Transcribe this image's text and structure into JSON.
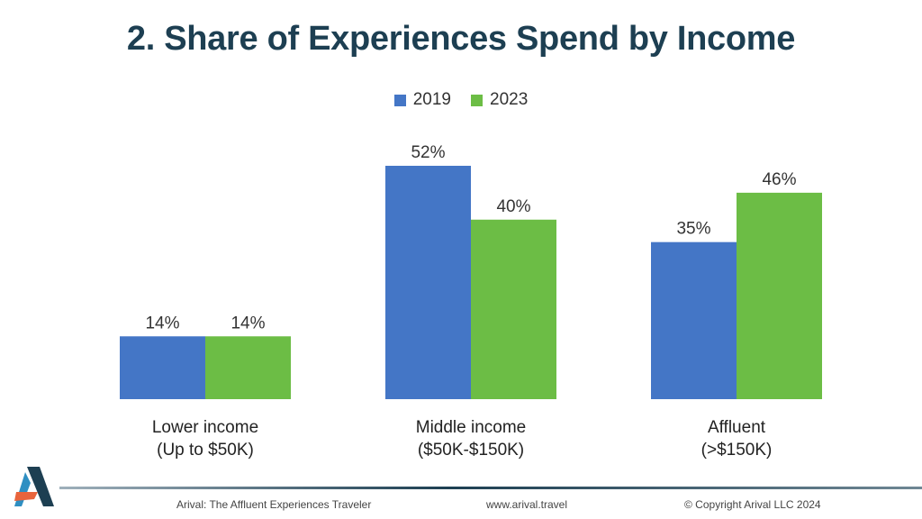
{
  "title": "2. Share of Experiences Spend by Income",
  "colors": {
    "series_2019": "#4476c6",
    "series_2023": "#6cbd45",
    "title": "#1d3f52"
  },
  "chart_data": {
    "type": "bar",
    "title": "2. Share of Experiences Spend by Income",
    "categories": [
      [
        "Lower income",
        "(Up to $50K)"
      ],
      [
        "Middle income",
        "($50K-$150K)"
      ],
      [
        "Affluent",
        "(>$150K)"
      ]
    ],
    "series": [
      {
        "name": "2019",
        "values": [
          14,
          52,
          35
        ],
        "labels": [
          "14%",
          "52%",
          "35%"
        ]
      },
      {
        "name": "2023",
        "values": [
          14,
          40,
          46
        ],
        "labels": [
          "14%",
          "40%",
          "46%"
        ]
      }
    ],
    "ylim": [
      0,
      52
    ],
    "legend": "top-center",
    "grid": false
  },
  "footer": {
    "left": "Arival: The Affluent Experiences Traveler",
    "center": "www.arival.travel",
    "right": "© Copyright Arival LLC 2024"
  },
  "logo": {
    "icon": "arival-logo-icon"
  }
}
